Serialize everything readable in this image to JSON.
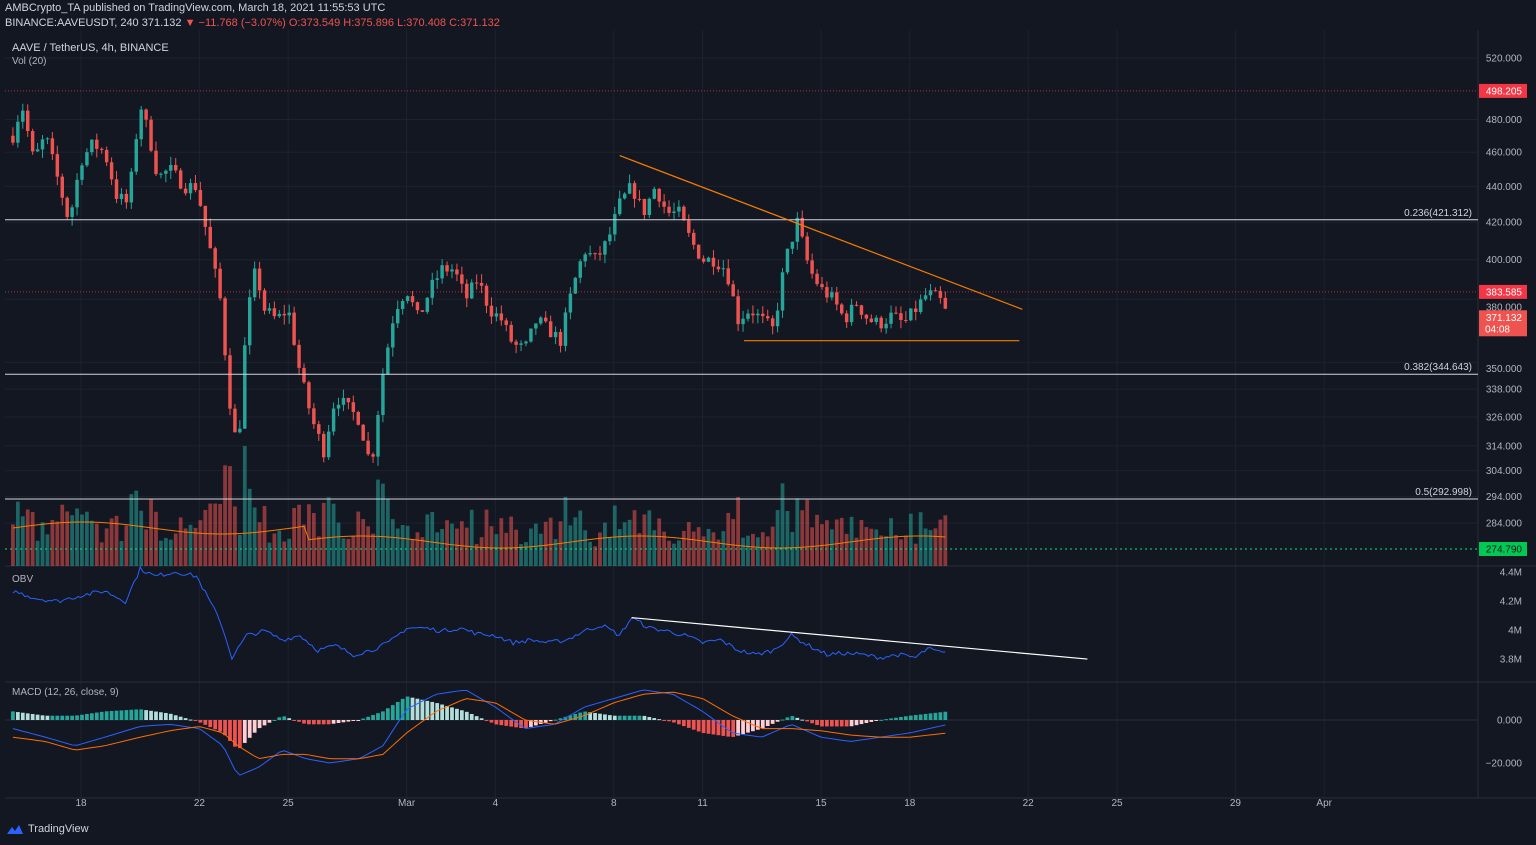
{
  "header": {
    "author_line": "AMBCrypto_TA published on TradingView.com, March 18, 2021 11:55:53 UTC",
    "symbol_line": "BINANCE:AAVEUSDT, 240",
    "last": "371.132",
    "change": "▼ −11.768 (−3.07%)",
    "o": "O:373.549",
    "h": "H:375.896",
    "l": "L:370.408",
    "c": "C:371.132",
    "title": "AAVE / TetherUS, 4h, BINANCE",
    "vol_label": "Vol (20)"
  },
  "panes": {
    "obv_label": "OBV",
    "macd_label": "MACD (12, 26, close, 9)"
  },
  "footer": {
    "brand": "TradingView",
    "logo_icon": "tradingview-logo-icon"
  },
  "colors": {
    "background": "#131722",
    "up": "#26a69a",
    "down": "#ef5350",
    "trendline": "#f57c00",
    "obv": "#2962ff",
    "macd": "#2962ff",
    "signal": "#ff6d00",
    "fib": "#b2b5be",
    "resistance": "#f23645",
    "volume_line": "#42a5f5"
  },
  "chart_data": {
    "type": "candlestick",
    "price_axis_ticks": [
      "520.000",
      "498.205",
      "480.000",
      "460.000",
      "440.000",
      "420.000",
      "400.000",
      "383.585",
      "380.000",
      "371.132",
      "04:08",
      "350.000",
      "338.000",
      "326.000",
      "314.000",
      "304.000",
      "294.000",
      "284.000",
      "274.790"
    ],
    "price_ticks": [
      520,
      480,
      460,
      440,
      420,
      400,
      380,
      350,
      338,
      326,
      314,
      304,
      294,
      284
    ],
    "obv_ticks": [
      "4.4M",
      "4.2M",
      "4M",
      "3.8M"
    ],
    "macd_ticks": [
      "0.000",
      "−20.000"
    ],
    "x_ticks": [
      {
        "label": "18",
        "day": 0
      },
      {
        "label": "22",
        "day": 4
      },
      {
        "label": "25",
        "day": 7
      },
      {
        "label": "Mar",
        "day": 11
      },
      {
        "label": "4",
        "day": 14
      },
      {
        "label": "8",
        "day": 18
      },
      {
        "label": "11",
        "day": 21
      },
      {
        "label": "15",
        "day": 25
      },
      {
        "label": "18",
        "day": 28
      },
      {
        "label": "22",
        "day": 32
      },
      {
        "label": "25",
        "day": 35
      },
      {
        "label": "29",
        "day": 39
      },
      {
        "label": "Apr",
        "day": 42
      }
    ],
    "levels": [
      {
        "label": "0.236(421.312)",
        "price": 421.312
      },
      {
        "label": "0.382(344.643)",
        "price": 344.643
      },
      {
        "label": "0.5(292.998)",
        "price": 292.998
      }
    ],
    "resistance_levels": [
      {
        "label": "498.205",
        "price": 498.205
      },
      {
        "label": "383.585",
        "price": 383.585
      }
    ],
    "last_price": {
      "label": "371.132",
      "countdown": "04:08",
      "price": 371.132
    },
    "volume_ma_level": {
      "label": "274.790"
    },
    "trendlines": {
      "descending": [
        {
          "day": 18.2,
          "price": 458
        },
        {
          "day": 31.8,
          "price": 375
        }
      ],
      "support": [
        {
          "day": 22.4,
          "price": 360
        },
        {
          "day": 31.7,
          "price": 360
        }
      ],
      "obv_descending": [
        {
          "day": 18.6,
          "obv": 4.07
        },
        {
          "day": 34,
          "obv": 3.79
        }
      ]
    },
    "price_path": [
      {
        "day": -2.3,
        "p": 470
      },
      {
        "day": -2.0,
        "p": 490
      },
      {
        "day": -1.6,
        "p": 455
      },
      {
        "day": -1.2,
        "p": 470
      },
      {
        "day": -0.8,
        "p": 445
      },
      {
        "day": -0.4,
        "p": 420
      },
      {
        "day": 0.0,
        "p": 455
      },
      {
        "day": 0.4,
        "p": 465
      },
      {
        "day": 0.8,
        "p": 460
      },
      {
        "day": 1.2,
        "p": 435
      },
      {
        "day": 1.6,
        "p": 430
      },
      {
        "day": 2.0,
        "p": 490
      },
      {
        "day": 2.3,
        "p": 470
      },
      {
        "day": 2.6,
        "p": 445
      },
      {
        "day": 3.0,
        "p": 450
      },
      {
        "day": 3.5,
        "p": 440
      },
      {
        "day": 3.9,
        "p": 440
      },
      {
        "day": 4.3,
        "p": 410
      },
      {
        "day": 4.7,
        "p": 380
      },
      {
        "day": 5.0,
        "p": 335
      },
      {
        "day": 5.3,
        "p": 310
      },
      {
        "day": 5.6,
        "p": 370
      },
      {
        "day": 5.9,
        "p": 395
      },
      {
        "day": 6.2,
        "p": 375
      },
      {
        "day": 6.6,
        "p": 370
      },
      {
        "day": 7.0,
        "p": 375
      },
      {
        "day": 7.4,
        "p": 345
      },
      {
        "day": 7.8,
        "p": 325
      },
      {
        "day": 8.2,
        "p": 312
      },
      {
        "day": 8.6,
        "p": 335
      },
      {
        "day": 9.0,
        "p": 330
      },
      {
        "day": 9.4,
        "p": 325
      },
      {
        "day": 9.8,
        "p": 305
      },
      {
        "day": 10.2,
        "p": 345
      },
      {
        "day": 10.6,
        "p": 375
      },
      {
        "day": 11.0,
        "p": 385
      },
      {
        "day": 11.4,
        "p": 370
      },
      {
        "day": 11.8,
        "p": 385
      },
      {
        "day": 12.2,
        "p": 395
      },
      {
        "day": 12.6,
        "p": 395
      },
      {
        "day": 13.0,
        "p": 380
      },
      {
        "day": 13.4,
        "p": 390
      },
      {
        "day": 13.8,
        "p": 375
      },
      {
        "day": 14.2,
        "p": 370
      },
      {
        "day": 14.6,
        "p": 358
      },
      {
        "day": 15.0,
        "p": 356
      },
      {
        "day": 15.4,
        "p": 370
      },
      {
        "day": 15.8,
        "p": 365
      },
      {
        "day": 16.2,
        "p": 360
      },
      {
        "day": 16.6,
        "p": 385
      },
      {
        "day": 17.0,
        "p": 405
      },
      {
        "day": 17.4,
        "p": 400
      },
      {
        "day": 17.8,
        "p": 410
      },
      {
        "day": 18.2,
        "p": 430
      },
      {
        "day": 18.6,
        "p": 440
      },
      {
        "day": 19.0,
        "p": 425
      },
      {
        "day": 19.4,
        "p": 440
      },
      {
        "day": 19.8,
        "p": 425
      },
      {
        "day": 20.2,
        "p": 425
      },
      {
        "day": 20.6,
        "p": 410
      },
      {
        "day": 21.0,
        "p": 400
      },
      {
        "day": 21.4,
        "p": 400
      },
      {
        "day": 21.8,
        "p": 395
      },
      {
        "day": 22.2,
        "p": 370
      },
      {
        "day": 22.6,
        "p": 375
      },
      {
        "day": 23.0,
        "p": 370
      },
      {
        "day": 23.4,
        "p": 365
      },
      {
        "day": 23.8,
        "p": 400
      },
      {
        "day": 24.2,
        "p": 420
      },
      {
        "day": 24.6,
        "p": 395
      },
      {
        "day": 25.0,
        "p": 385
      },
      {
        "day": 25.4,
        "p": 380
      },
      {
        "day": 25.8,
        "p": 370
      },
      {
        "day": 26.2,
        "p": 378
      },
      {
        "day": 26.6,
        "p": 370
      },
      {
        "day": 27.0,
        "p": 368
      },
      {
        "day": 27.4,
        "p": 372
      },
      {
        "day": 27.8,
        "p": 368
      },
      {
        "day": 28.2,
        "p": 375
      },
      {
        "day": 28.6,
        "p": 383
      },
      {
        "day": 29.0,
        "p": 380
      },
      {
        "day": 29.3,
        "p": 371
      }
    ],
    "obv_path": [
      {
        "day": -2.3,
        "v": 4.25
      },
      {
        "day": -1.5,
        "v": 4.2
      },
      {
        "day": -0.8,
        "v": 4.18
      },
      {
        "day": 0.0,
        "v": 4.22
      },
      {
        "day": 0.8,
        "v": 4.25
      },
      {
        "day": 1.5,
        "v": 4.18
      },
      {
        "day": 2.0,
        "v": 4.4
      },
      {
        "day": 2.5,
        "v": 4.35
      },
      {
        "day": 3.2,
        "v": 4.38
      },
      {
        "day": 3.9,
        "v": 4.35
      },
      {
        "day": 4.3,
        "v": 4.2
      },
      {
        "day": 4.7,
        "v": 4.05
      },
      {
        "day": 5.1,
        "v": 3.8
      },
      {
        "day": 5.6,
        "v": 3.95
      },
      {
        "day": 6.2,
        "v": 3.98
      },
      {
        "day": 6.8,
        "v": 3.92
      },
      {
        "day": 7.4,
        "v": 3.95
      },
      {
        "day": 8.0,
        "v": 3.85
      },
      {
        "day": 8.6,
        "v": 3.88
      },
      {
        "day": 9.2,
        "v": 3.82
      },
      {
        "day": 9.8,
        "v": 3.85
      },
      {
        "day": 10.4,
        "v": 3.9
      },
      {
        "day": 11.0,
        "v": 4.0
      },
      {
        "day": 11.6,
        "v": 4.0
      },
      {
        "day": 12.2,
        "v": 3.98
      },
      {
        "day": 12.8,
        "v": 4.0
      },
      {
        "day": 13.4,
        "v": 3.96
      },
      {
        "day": 14.0,
        "v": 3.95
      },
      {
        "day": 14.6,
        "v": 3.9
      },
      {
        "day": 15.2,
        "v": 3.92
      },
      {
        "day": 15.8,
        "v": 3.9
      },
      {
        "day": 16.4,
        "v": 3.92
      },
      {
        "day": 17.0,
        "v": 3.98
      },
      {
        "day": 17.6,
        "v": 4.02
      },
      {
        "day": 18.2,
        "v": 3.95
      },
      {
        "day": 18.6,
        "v": 4.07
      },
      {
        "day": 19.2,
        "v": 4.0
      },
      {
        "day": 19.8,
        "v": 3.98
      },
      {
        "day": 20.4,
        "v": 3.95
      },
      {
        "day": 21.0,
        "v": 3.9
      },
      {
        "day": 21.6,
        "v": 3.92
      },
      {
        "day": 22.2,
        "v": 3.85
      },
      {
        "day": 22.8,
        "v": 3.82
      },
      {
        "day": 23.4,
        "v": 3.85
      },
      {
        "day": 24.0,
        "v": 3.95
      },
      {
        "day": 24.6,
        "v": 3.88
      },
      {
        "day": 25.2,
        "v": 3.82
      },
      {
        "day": 25.8,
        "v": 3.83
      },
      {
        "day": 26.4,
        "v": 3.82
      },
      {
        "day": 27.0,
        "v": 3.8
      },
      {
        "day": 27.6,
        "v": 3.82
      },
      {
        "day": 28.2,
        "v": 3.8
      },
      {
        "day": 28.6,
        "v": 3.86
      },
      {
        "day": 29.3,
        "v": 3.82
      }
    ],
    "macd_path": [
      {
        "day": -2.3,
        "m": -4,
        "s": -8
      },
      {
        "day": -1.2,
        "m": -8,
        "s": -10
      },
      {
        "day": -0.2,
        "m": -12,
        "s": -14
      },
      {
        "day": 0.8,
        "m": -8,
        "s": -12
      },
      {
        "day": 2.0,
        "m": -3,
        "s": -8
      },
      {
        "day": 3.0,
        "m": -2,
        "s": -5
      },
      {
        "day": 4.0,
        "m": -4,
        "s": -3
      },
      {
        "day": 4.8,
        "m": -12,
        "s": -6
      },
      {
        "day": 5.3,
        "m": -26,
        "s": -12
      },
      {
        "day": 6.0,
        "m": -22,
        "s": -18
      },
      {
        "day": 6.8,
        "m": -14,
        "s": -16
      },
      {
        "day": 7.6,
        "m": -18,
        "s": -16
      },
      {
        "day": 8.4,
        "m": -20,
        "s": -18
      },
      {
        "day": 9.4,
        "m": -18,
        "s": -18
      },
      {
        "day": 10.2,
        "m": -12,
        "s": -16
      },
      {
        "day": 11.0,
        "m": 5,
        "s": -6
      },
      {
        "day": 12.0,
        "m": 12,
        "s": 4
      },
      {
        "day": 13.0,
        "m": 14,
        "s": 10
      },
      {
        "day": 14.0,
        "m": 6,
        "s": 8
      },
      {
        "day": 15.0,
        "m": -4,
        "s": 0
      },
      {
        "day": 16.0,
        "m": -2,
        "s": -2
      },
      {
        "day": 17.0,
        "m": 6,
        "s": 2
      },
      {
        "day": 18.0,
        "m": 10,
        "s": 8
      },
      {
        "day": 19.0,
        "m": 14,
        "s": 12
      },
      {
        "day": 20.0,
        "m": 12,
        "s": 13
      },
      {
        "day": 21.0,
        "m": 4,
        "s": 10
      },
      {
        "day": 22.0,
        "m": -6,
        "s": 2
      },
      {
        "day": 23.0,
        "m": -8,
        "s": -4
      },
      {
        "day": 24.0,
        "m": -2,
        "s": -4
      },
      {
        "day": 25.0,
        "m": -8,
        "s": -5
      },
      {
        "day": 26.0,
        "m": -10,
        "s": -7
      },
      {
        "day": 27.0,
        "m": -8,
        "s": -8
      },
      {
        "day": 28.0,
        "m": -6,
        "s": -8
      },
      {
        "day": 29.3,
        "m": -2,
        "s": -6
      }
    ]
  }
}
